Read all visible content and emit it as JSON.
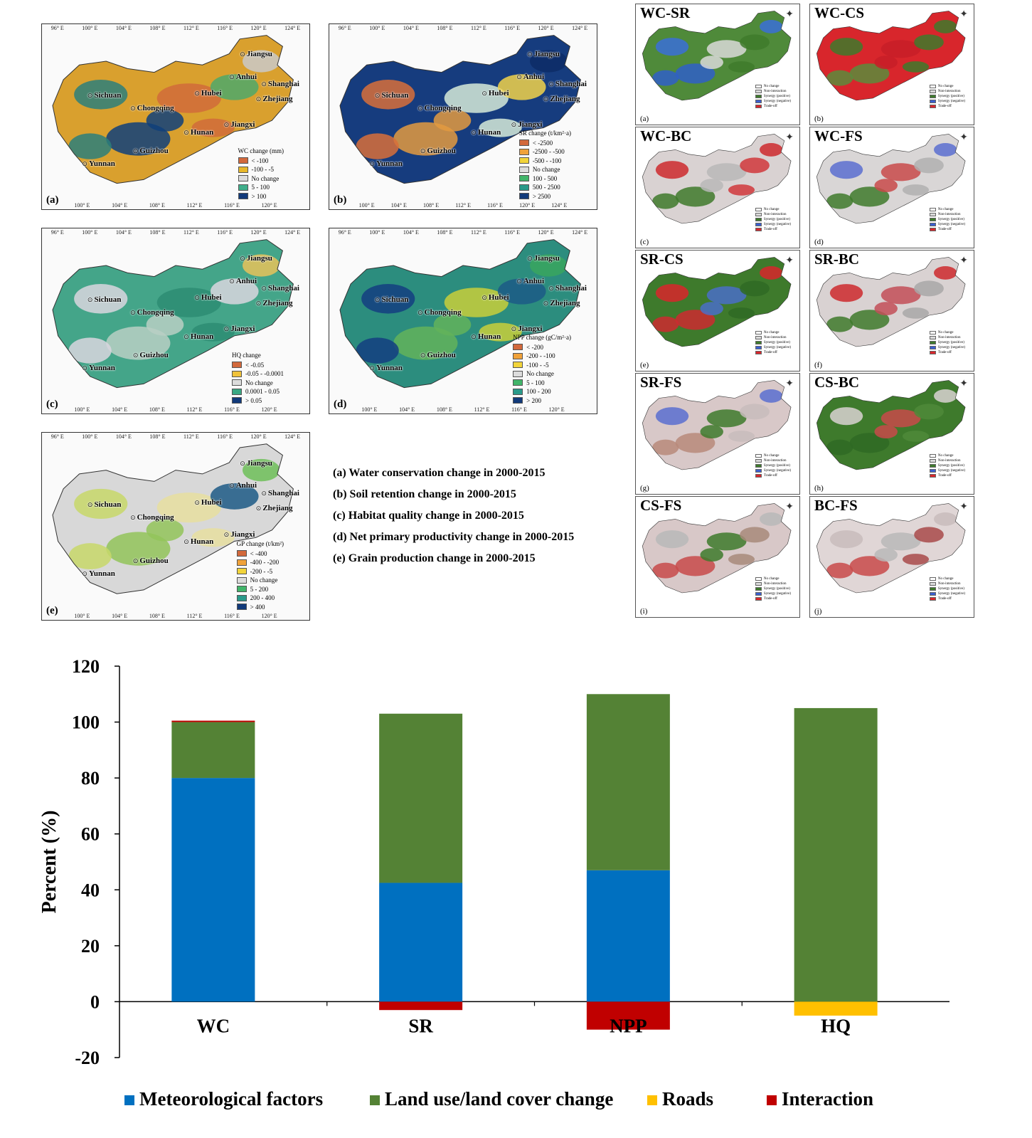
{
  "map_panels": [
    {
      "letter": "(a)",
      "legend_title": "WC change (mm)",
      "legend": [
        {
          "label": "< -100",
          "color": "#d2693c"
        },
        {
          "label": "-100 - -5",
          "color": "#e8b82a"
        },
        {
          "label": "No change",
          "color": "#dcdcdc"
        },
        {
          "label": "5 - 100",
          "color": "#3fae8a"
        },
        {
          "label": "> 100",
          "color": "#123a7a"
        }
      ],
      "base_color": "#d9a02e",
      "blob_colors": [
        "#2c7f7a",
        "#0f3f7a",
        "#d06b3a",
        "#4ea86a",
        "#c9c9c9"
      ],
      "ticks_top": [
        "96° E",
        "100° E",
        "104° E",
        "108° E",
        "112° E",
        "116° E",
        "120° E",
        "124° E"
      ],
      "ticks_bottom": [
        "100° E",
        "104° E",
        "108° E",
        "112° E",
        "116° E",
        "120° E"
      ]
    },
    {
      "letter": "(b)",
      "legend_title": "SR change (t/km²·a)",
      "legend": [
        {
          "label": "< -2500",
          "color": "#d2693c"
        },
        {
          "label": "-2500 - -500",
          "color": "#f0a23a"
        },
        {
          "label": "-500 - -100",
          "color": "#f2d43a"
        },
        {
          "label": "No change",
          "color": "#dcdcdc"
        },
        {
          "label": "100 - 500",
          "color": "#41b56a"
        },
        {
          "label": "500 - 2500",
          "color": "#2a9a8a"
        },
        {
          "label": "> 2500",
          "color": "#123a7a"
        }
      ],
      "base_color": "#163c7e",
      "blob_colors": [
        "#d86f3a",
        "#e39a40",
        "#d6ead8",
        "#f1d24a",
        "#0d2c66"
      ],
      "ticks_top": [
        "96° E",
        "100° E",
        "104° E",
        "108° E",
        "112° E",
        "116° E",
        "120° E",
        "124° E"
      ],
      "ticks_bottom": [
        "100° E",
        "104° E",
        "108° E",
        "112° E",
        "116° E",
        "120° E",
        "124° E"
      ]
    },
    {
      "letter": "(c)",
      "legend_title": "HQ change",
      "legend": [
        {
          "label": "< -0.05",
          "color": "#d2693c"
        },
        {
          "label": "-0.05 - -0.0001",
          "color": "#f0c23a"
        },
        {
          "label": "No change",
          "color": "#dcdcdc"
        },
        {
          "label": "0.0001 - 0.05",
          "color": "#3aa883"
        },
        {
          "label": "> 0.05",
          "color": "#123a7a"
        }
      ],
      "base_color": "#44a589",
      "blob_colors": [
        "#d9d6df",
        "#b8cfc4",
        "#2d8c73",
        "#d9d6df",
        "#e8c25a"
      ],
      "ticks_top": [
        "96° E",
        "100° E",
        "104° E",
        "108° E",
        "112° E",
        "116° E",
        "120° E",
        "124° E"
      ],
      "ticks_bottom": [
        "100° E",
        "104° E",
        "108° E",
        "112° E",
        "116° E",
        "120° E"
      ]
    },
    {
      "letter": "(d)",
      "legend_title": "NPP change (gC/m²·a)",
      "legend": [
        {
          "label": "< -200",
          "color": "#d2693c"
        },
        {
          "label": "-200 - -100",
          "color": "#f0a23a"
        },
        {
          "label": "-100 - -5",
          "color": "#f2d43a"
        },
        {
          "label": "No change",
          "color": "#dcdcdc"
        },
        {
          "label": "5 - 100",
          "color": "#41b56a"
        },
        {
          "label": "100 - 200",
          "color": "#2a9a8a"
        },
        {
          "label": "> 200",
          "color": "#123a7a"
        }
      ],
      "base_color": "#2c8d7e",
      "blob_colors": [
        "#143e80",
        "#63b35a",
        "#c9cf3a",
        "#1c5a86",
        "#3aa65e"
      ],
      "ticks_top": [
        "96° E",
        "100° E",
        "104° E",
        "108° E",
        "112° E",
        "116° E",
        "120° E",
        "124° E"
      ],
      "ticks_bottom": [
        "100° E",
        "104° E",
        "108° E",
        "112° E",
        "116° E",
        "120° E"
      ]
    },
    {
      "letter": "(e)",
      "legend_title": "GP change (t/km²)",
      "legend": [
        {
          "label": "< -400",
          "color": "#d2693c"
        },
        {
          "label": "-400 - -200",
          "color": "#f0a23a"
        },
        {
          "label": "-200 - -5",
          "color": "#f2d43a"
        },
        {
          "label": "No change",
          "color": "#dcdcdc"
        },
        {
          "label": "5 - 200",
          "color": "#41b56a"
        },
        {
          "label": "200 - 400",
          "color": "#2a9a8a"
        },
        {
          "label": "> 400",
          "color": "#123a7a"
        }
      ],
      "base_color": "#d8d8d8",
      "blob_colors": [
        "#c8d86a",
        "#93c45a",
        "#e7dfa0",
        "#1d5a86",
        "#6fbf59"
      ],
      "ticks_top": [
        "96° E",
        "100° E",
        "104° E",
        "108° E",
        "112° E",
        "116° E",
        "120° E",
        "124° E"
      ],
      "ticks_bottom": [
        "100° E",
        "104° E",
        "108° E",
        "112° E",
        "116° E",
        "120° E"
      ]
    }
  ],
  "cities": [
    "Jiangsu",
    "Anhui",
    "Shanghai",
    "Zhejiang",
    "Sichuan",
    "Hubei",
    "Chongqing",
    "Jiangxi",
    "Hunan",
    "Yunnan",
    "Guizhou"
  ],
  "captions": [
    "(a) Water conservation change in 2000-2015",
    "(b) Soil retention change in 2000-2015",
    "(c) Habitat quality change in 2000-2015",
    "(d) Net primary productivity change in 2000-2015",
    "(e) Grain production change in 2000-2015"
  ],
  "relation_panels": [
    {
      "title": "WC-SR",
      "letter": "(a)",
      "base_color": "#4f8a3a",
      "blob_colors": [
        "#3a6fd8",
        "#2f5fc8",
        "#d9d9d9",
        "#3e7a2c"
      ],
      "legend": [
        "No change",
        "Non-interaction",
        "Synergy (positive)",
        "Synergy (negative)",
        "Trade-off"
      ]
    },
    {
      "title": "WC-CS",
      "letter": "(b)",
      "base_color": "#d8262c",
      "blob_colors": [
        "#3e7a2c",
        "#5c8c3c",
        "#c81f28",
        "#3e7a2c"
      ],
      "legend": [
        "No change",
        "Non-interaction",
        "Synergy (positive)",
        "Synergy (negative)",
        "Trade-off"
      ]
    },
    {
      "title": "WC-BC",
      "letter": "(c)",
      "base_color": "#d9d2d2",
      "blob_colors": [
        "#cc2a2e",
        "#3e7a2c",
        "#b8b8b8",
        "#d0383c"
      ],
      "legend": [
        "No change",
        "Non-interaction",
        "Synergy (positive)",
        "Synergy (negative)",
        "Trade-off"
      ]
    },
    {
      "title": "WC-FS",
      "letter": "(d)",
      "base_color": "#d9d6d6",
      "blob_colors": [
        "#5a6fd0",
        "#3e7a2c",
        "#c84a4a",
        "#b0b0b0"
      ],
      "legend": [
        "No change",
        "Non-interaction",
        "Synergy (positive)",
        "Synergy (negative)",
        "Trade-off"
      ]
    },
    {
      "title": "SR-CS",
      "letter": "(e)",
      "base_color": "#3e7a2c",
      "blob_colors": [
        "#d8262c",
        "#cc2a30",
        "#4a6fc8",
        "#2f6a24"
      ],
      "legend": [
        "No change",
        "Non-interaction",
        "Synergy (positive)",
        "Synergy (negative)",
        "Trade-off"
      ]
    },
    {
      "title": "SR-BC",
      "letter": "(f)",
      "base_color": "#d9d2d2",
      "blob_colors": [
        "#cc2a2e",
        "#3e7a2c",
        "#c24f58",
        "#a8a8a8"
      ],
      "legend": [
        "No change",
        "Non-interaction",
        "Synergy (positive)",
        "Synergy (negative)",
        "Trade-off"
      ]
    },
    {
      "title": "SR-FS",
      "letter": "(g)",
      "base_color": "#d8c8c8",
      "blob_colors": [
        "#5a6fd0",
        "#b88a7a",
        "#3e7a2c",
        "#c8bcbc"
      ],
      "legend": [
        "No change",
        "Non-interaction",
        "Synergy (positive)",
        "Synergy (negative)",
        "Trade-off"
      ]
    },
    {
      "title": "CS-BC",
      "letter": "(h)",
      "base_color": "#3e7a2c",
      "blob_colors": [
        "#d9d2d2",
        "#2f6a24",
        "#c84a4a",
        "#4f8a3a"
      ],
      "legend": [
        "No change",
        "Non-interaction",
        "Synergy (positive)",
        "Synergy (negative)",
        "Trade-off"
      ]
    },
    {
      "title": "CS-FS",
      "letter": "(i)",
      "base_color": "#d8c8c8",
      "blob_colors": [
        "#b8b8b8",
        "#c84a4a",
        "#3e7a2c",
        "#a88a7a"
      ],
      "legend": [
        "No change",
        "Non-interaction",
        "Synergy (positive)",
        "Synergy (negative)",
        "Trade-off"
      ]
    },
    {
      "title": "BC-FS",
      "letter": "(j)",
      "base_color": "#e0d6d6",
      "blob_colors": [
        "#c8bcbc",
        "#c84a4a",
        "#b8b8b8",
        "#a84a4a"
      ],
      "legend": [
        "No change",
        "Non-interaction",
        "Synergy (positive)",
        "Synergy (negative)",
        "Trade-off"
      ]
    }
  ],
  "chart_data": {
    "type": "bar",
    "stacked": true,
    "categories": [
      "WC",
      "SR",
      "NPP",
      "HQ"
    ],
    "series": [
      {
        "name": "Meteorological factors",
        "color": "#0070c0",
        "values": [
          80,
          42.5,
          47,
          0
        ]
      },
      {
        "name": "Land use/land cover change",
        "color": "#548235",
        "values": [
          20,
          60.5,
          63,
          105
        ]
      },
      {
        "name": "Roads",
        "color": "#ffc000",
        "values": [
          0,
          0,
          0,
          -5
        ]
      },
      {
        "name": "Interaction",
        "color": "#c00000",
        "values": [
          0.5,
          -3,
          -10,
          0
        ]
      }
    ],
    "ylabel": "Percent (%)",
    "xlabel": "",
    "title": "",
    "ylim": [
      -20,
      120
    ],
    "yticks": [
      -20,
      0,
      20,
      40,
      60,
      80,
      100,
      120
    ],
    "grid": false,
    "legend_position": "bottom"
  }
}
